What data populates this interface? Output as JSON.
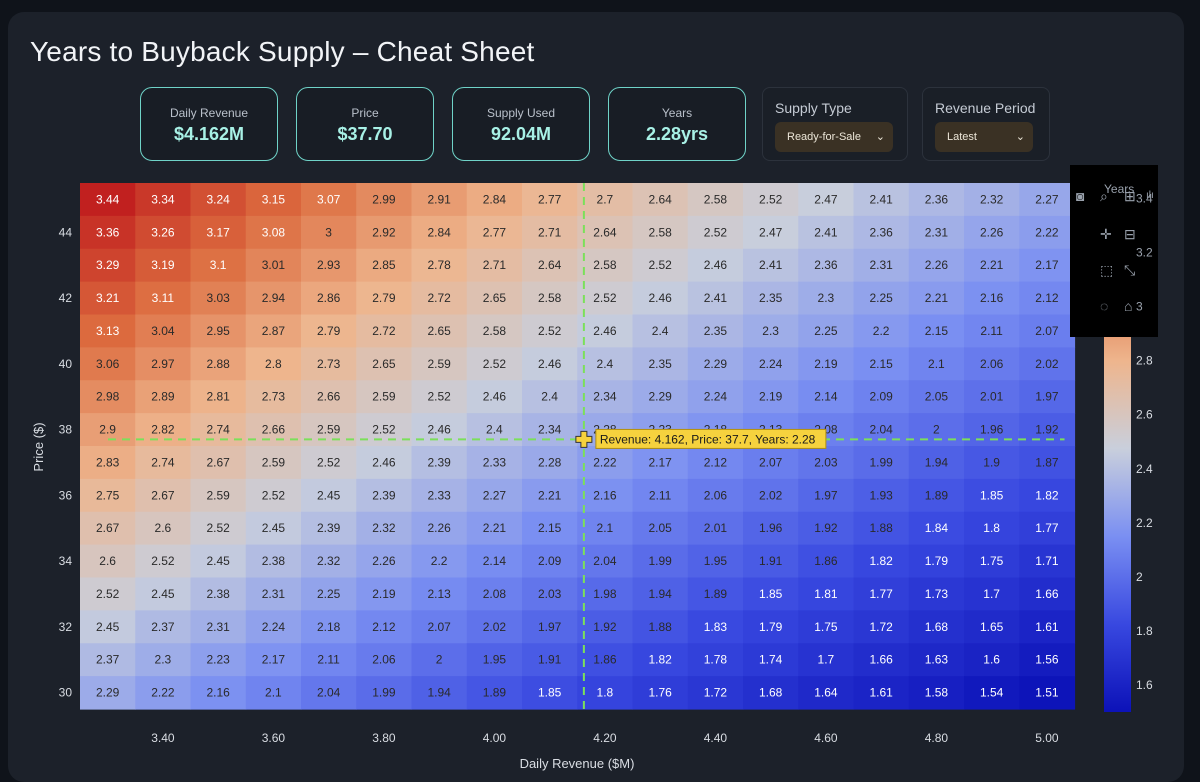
{
  "header": {
    "title": "Years to Buyback Supply – Cheat Sheet"
  },
  "kpis": [
    {
      "label": "Daily Revenue",
      "value": "$4.162M"
    },
    {
      "label": "Price",
      "value": "$37.70"
    },
    {
      "label": "Supply Used",
      "value": "92.04M"
    },
    {
      "label": "Years",
      "value": "2.28yrs"
    }
  ],
  "controls": {
    "supply_type": {
      "label": "Supply Type",
      "selected": "Ready-for-Sale"
    },
    "revenue_period": {
      "label": "Revenue Period",
      "selected": "Latest"
    }
  },
  "modebar": {
    "icons": [
      "camera-icon",
      "zoom-icon",
      "zoom-in-icon",
      "pan-icon",
      "zoom-out-icon",
      "box-select-icon",
      "autoscale-icon",
      "lasso-icon",
      "home-icon",
      "plotly-logo-icon"
    ]
  },
  "chart_data": {
    "type": "heatmap",
    "xlabel": "Daily Revenue ($M)",
    "ylabel": "Price ($)",
    "x_ticks": [
      "3.40",
      "3.60",
      "3.80",
      "4.00",
      "4.20",
      "4.40",
      "4.60",
      "4.80",
      "5.00"
    ],
    "y_ticks": [
      "30",
      "32",
      "34",
      "36",
      "38",
      "40",
      "42",
      "44"
    ],
    "x": [
      3.3,
      3.4,
      3.5,
      3.6,
      3.7,
      3.8,
      3.9,
      4.0,
      4.1,
      4.2,
      4.3,
      4.4,
      4.5,
      4.6,
      4.7,
      4.8,
      4.9,
      5.0
    ],
    "y": [
      45,
      44,
      43,
      42,
      41,
      40,
      39,
      38,
      37,
      36,
      35,
      34,
      33,
      32,
      31,
      30
    ],
    "z": [
      [
        3.44,
        3.34,
        3.24,
        3.15,
        3.07,
        2.99,
        2.91,
        2.84,
        2.77,
        2.7,
        2.64,
        2.58,
        2.52,
        2.47,
        2.41,
        2.36,
        2.32,
        2.27
      ],
      [
        3.36,
        3.26,
        3.17,
        3.08,
        3.0,
        2.92,
        2.84,
        2.77,
        2.71,
        2.64,
        2.58,
        2.52,
        2.47,
        2.41,
        2.36,
        2.31,
        2.26,
        2.22
      ],
      [
        3.29,
        3.19,
        3.1,
        3.01,
        2.93,
        2.85,
        2.78,
        2.71,
        2.64,
        2.58,
        2.52,
        2.46,
        2.41,
        2.36,
        2.31,
        2.26,
        2.21,
        2.17
      ],
      [
        3.21,
        3.11,
        3.03,
        2.94,
        2.86,
        2.79,
        2.72,
        2.65,
        2.58,
        2.52,
        2.46,
        2.41,
        2.35,
        2.3,
        2.25,
        2.21,
        2.16,
        2.12
      ],
      [
        3.13,
        3.04,
        2.95,
        2.87,
        2.79,
        2.72,
        2.65,
        2.58,
        2.52,
        2.46,
        2.4,
        2.35,
        2.3,
        2.25,
        2.2,
        2.15,
        2.11,
        2.07
      ],
      [
        3.06,
        2.97,
        2.88,
        2.8,
        2.73,
        2.65,
        2.59,
        2.52,
        2.46,
        2.4,
        2.35,
        2.29,
        2.24,
        2.19,
        2.15,
        2.1,
        2.06,
        2.02
      ],
      [
        2.98,
        2.89,
        2.81,
        2.73,
        2.66,
        2.59,
        2.52,
        2.46,
        2.4,
        2.34,
        2.29,
        2.24,
        2.19,
        2.14,
        2.09,
        2.05,
        2.01,
        1.97
      ],
      [
        2.9,
        2.82,
        2.74,
        2.66,
        2.59,
        2.52,
        2.46,
        2.4,
        2.34,
        2.28,
        2.23,
        2.18,
        2.13,
        2.08,
        2.04,
        2.0,
        1.96,
        1.92
      ],
      [
        2.83,
        2.74,
        2.67,
        2.59,
        2.52,
        2.46,
        2.39,
        2.33,
        2.28,
        2.22,
        2.17,
        2.12,
        2.07,
        2.03,
        1.99,
        1.94,
        1.9,
        1.87
      ],
      [
        2.75,
        2.67,
        2.59,
        2.52,
        2.45,
        2.39,
        2.33,
        2.27,
        2.21,
        2.16,
        2.11,
        2.06,
        2.02,
        1.97,
        1.93,
        1.89,
        1.85,
        1.82
      ],
      [
        2.67,
        2.6,
        2.52,
        2.45,
        2.39,
        2.32,
        2.26,
        2.21,
        2.15,
        2.1,
        2.05,
        2.01,
        1.96,
        1.92,
        1.88,
        1.84,
        1.8,
        1.77
      ],
      [
        2.6,
        2.52,
        2.45,
        2.38,
        2.32,
        2.26,
        2.2,
        2.14,
        2.09,
        2.04,
        1.99,
        1.95,
        1.91,
        1.86,
        1.82,
        1.79,
        1.75,
        1.71
      ],
      [
        2.52,
        2.45,
        2.38,
        2.31,
        2.25,
        2.19,
        2.13,
        2.08,
        2.03,
        1.98,
        1.94,
        1.89,
        1.85,
        1.81,
        1.77,
        1.73,
        1.7,
        1.66
      ],
      [
        2.45,
        2.37,
        2.31,
        2.24,
        2.18,
        2.12,
        2.07,
        2.02,
        1.97,
        1.92,
        1.88,
        1.83,
        1.79,
        1.75,
        1.72,
        1.68,
        1.65,
        1.61
      ],
      [
        2.37,
        2.3,
        2.23,
        2.17,
        2.11,
        2.06,
        2.0,
        1.95,
        1.91,
        1.86,
        1.82,
        1.78,
        1.74,
        1.7,
        1.66,
        1.63,
        1.6,
        1.56
      ],
      [
        2.29,
        2.22,
        2.16,
        2.1,
        2.04,
        1.99,
        1.94,
        1.89,
        1.85,
        1.8,
        1.76,
        1.72,
        1.68,
        1.64,
        1.61,
        1.58,
        1.54,
        1.51
      ]
    ],
    "zrange": [
      1.5,
      3.45
    ],
    "colorscale": [
      "#0c12b8",
      "#3848e0",
      "#7a8ff2",
      "#c9cfdc",
      "#eeb58d",
      "#dc6b3e",
      "#c01e1e"
    ],
    "colorbar": {
      "title": "Years",
      "ticks": [
        "1.6",
        "1.8",
        "2",
        "2.2",
        "2.4",
        "2.6",
        "2.8",
        "3",
        "3.2",
        "3.4"
      ]
    },
    "marker": {
      "x": 4.162,
      "y": 37.7
    },
    "hover_text": "Revenue: 4.162, Price: 37.7, Years: 2.28",
    "crosshair_color": "#7be05a",
    "hover_color": "#f6d23e"
  }
}
